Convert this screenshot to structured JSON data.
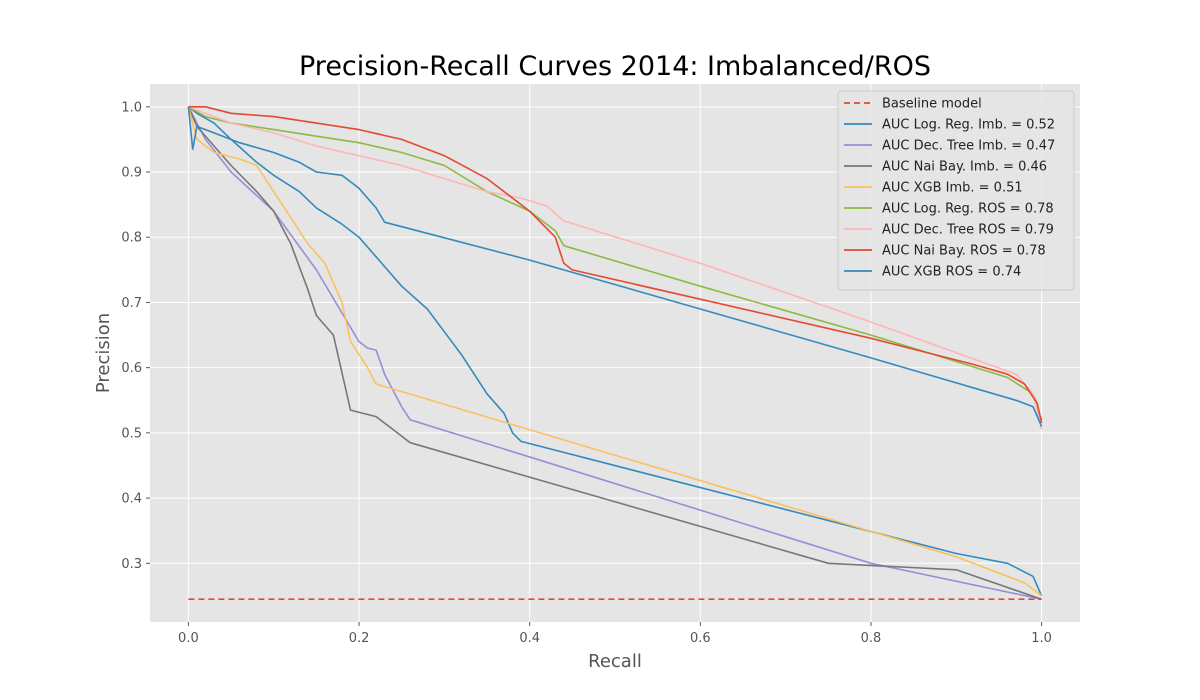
{
  "chart_data": {
    "type": "line",
    "title": "Precision-Recall Curves 2014: Imbalanced/ROS",
    "xlabel": "Recall",
    "ylabel": "Precision",
    "xlim": [
      -0.045,
      1.045
    ],
    "ylim": [
      0.21,
      1.035
    ],
    "xticks": [
      0.0,
      0.2,
      0.4,
      0.6,
      0.8,
      1.0
    ],
    "xtick_labels": [
      "0.0",
      "0.2",
      "0.4",
      "0.6",
      "0.8",
      "1.0"
    ],
    "yticks": [
      0.3,
      0.4,
      0.5,
      0.6,
      0.7,
      0.8,
      0.9,
      1.0
    ],
    "ytick_labels": [
      "0.3",
      "0.4",
      "0.5",
      "0.6",
      "0.7",
      "0.8",
      "0.9",
      "1.0"
    ],
    "grid": true,
    "legend_position": "top-right",
    "series": [
      {
        "name": "Baseline model",
        "color": "#E24A33",
        "dashed": true,
        "points": [
          [
            0.0,
            0.245
          ],
          [
            1.0,
            0.245
          ]
        ]
      },
      {
        "name": "AUC Log. Reg. Imb. = 0.52",
        "color": "#348ABD",
        "points": [
          [
            0.0,
            1.0
          ],
          [
            0.01,
            0.99
          ],
          [
            0.03,
            0.975
          ],
          [
            0.05,
            0.95
          ],
          [
            0.08,
            0.915
          ],
          [
            0.1,
            0.895
          ],
          [
            0.13,
            0.87
          ],
          [
            0.15,
            0.845
          ],
          [
            0.18,
            0.82
          ],
          [
            0.2,
            0.8
          ],
          [
            0.22,
            0.77
          ],
          [
            0.25,
            0.725
          ],
          [
            0.28,
            0.69
          ],
          [
            0.3,
            0.655
          ],
          [
            0.32,
            0.62
          ],
          [
            0.33,
            0.6
          ],
          [
            0.35,
            0.56
          ],
          [
            0.37,
            0.53
          ],
          [
            0.38,
            0.5
          ],
          [
            0.39,
            0.487
          ],
          [
            0.9,
            0.315
          ],
          [
            0.96,
            0.3
          ],
          [
            0.99,
            0.28
          ],
          [
            1.0,
            0.25
          ]
        ]
      },
      {
        "name": "AUC Dec. Tree Imb. = 0.47",
        "color": "#988ED5",
        "points": [
          [
            0.0,
            1.0
          ],
          [
            0.02,
            0.95
          ],
          [
            0.05,
            0.9
          ],
          [
            0.1,
            0.84
          ],
          [
            0.15,
            0.75
          ],
          [
            0.2,
            0.64
          ],
          [
            0.21,
            0.63
          ],
          [
            0.22,
            0.627
          ],
          [
            0.23,
            0.59
          ],
          [
            0.25,
            0.54
          ],
          [
            0.26,
            0.52
          ],
          [
            0.8,
            0.3
          ],
          [
            1.0,
            0.245
          ]
        ]
      },
      {
        "name": "AUC Nai Bay. Imb. = 0.46",
        "color": "#777777",
        "points": [
          [
            0.0,
            1.0
          ],
          [
            0.01,
            0.97
          ],
          [
            0.03,
            0.94
          ],
          [
            0.05,
            0.91
          ],
          [
            0.08,
            0.87
          ],
          [
            0.1,
            0.84
          ],
          [
            0.12,
            0.79
          ],
          [
            0.13,
            0.755
          ],
          [
            0.14,
            0.72
          ],
          [
            0.15,
            0.68
          ],
          [
            0.17,
            0.65
          ],
          [
            0.19,
            0.535
          ],
          [
            0.22,
            0.525
          ],
          [
            0.24,
            0.505
          ],
          [
            0.26,
            0.485
          ],
          [
            0.75,
            0.3
          ],
          [
            0.9,
            0.29
          ],
          [
            1.0,
            0.245
          ]
        ]
      },
      {
        "name": "AUC XGB Imb. = 0.51",
        "color": "#FBC15E",
        "points": [
          [
            0.0,
            1.0
          ],
          [
            0.01,
            0.95
          ],
          [
            0.03,
            0.93
          ],
          [
            0.06,
            0.92
          ],
          [
            0.08,
            0.91
          ],
          [
            0.1,
            0.87
          ],
          [
            0.12,
            0.83
          ],
          [
            0.14,
            0.79
          ],
          [
            0.16,
            0.76
          ],
          [
            0.18,
            0.7
          ],
          [
            0.19,
            0.64
          ],
          [
            0.21,
            0.6
          ],
          [
            0.22,
            0.575
          ],
          [
            0.9,
            0.31
          ],
          [
            0.98,
            0.27
          ],
          [
            1.0,
            0.25
          ]
        ]
      },
      {
        "name": "AUC Log. Reg. ROS = 0.78",
        "color": "#8EBA42",
        "points": [
          [
            0.0,
            1.0
          ],
          [
            0.02,
            0.985
          ],
          [
            0.05,
            0.975
          ],
          [
            0.1,
            0.965
          ],
          [
            0.15,
            0.955
          ],
          [
            0.2,
            0.945
          ],
          [
            0.25,
            0.93
          ],
          [
            0.3,
            0.91
          ],
          [
            0.35,
            0.87
          ],
          [
            0.4,
            0.84
          ],
          [
            0.43,
            0.81
          ],
          [
            0.44,
            0.787
          ],
          [
            0.6,
            0.725
          ],
          [
            0.8,
            0.65
          ],
          [
            0.96,
            0.585
          ],
          [
            0.99,
            0.56
          ],
          [
            1.0,
            0.52
          ]
        ]
      },
      {
        "name": "AUC Dec. Tree ROS = 0.79",
        "color": "#FFB5B8",
        "points": [
          [
            0.0,
            1.0
          ],
          [
            0.05,
            0.975
          ],
          [
            0.1,
            0.96
          ],
          [
            0.15,
            0.94
          ],
          [
            0.2,
            0.925
          ],
          [
            0.25,
            0.91
          ],
          [
            0.3,
            0.89
          ],
          [
            0.35,
            0.87
          ],
          [
            0.39,
            0.86
          ],
          [
            0.42,
            0.848
          ],
          [
            0.44,
            0.825
          ],
          [
            0.6,
            0.76
          ],
          [
            0.8,
            0.67
          ],
          [
            0.97,
            0.59
          ],
          [
            0.99,
            0.56
          ],
          [
            1.0,
            0.505
          ]
        ]
      },
      {
        "name": "AUC Nai Bay. ROS = 0.78",
        "color": "#E24A33",
        "points": [
          [
            0.0,
            1.0
          ],
          [
            0.02,
            1.0
          ],
          [
            0.05,
            0.99
          ],
          [
            0.1,
            0.985
          ],
          [
            0.15,
            0.975
          ],
          [
            0.2,
            0.965
          ],
          [
            0.25,
            0.95
          ],
          [
            0.3,
            0.925
          ],
          [
            0.35,
            0.89
          ],
          [
            0.4,
            0.84
          ],
          [
            0.43,
            0.8
          ],
          [
            0.44,
            0.76
          ],
          [
            0.45,
            0.75
          ],
          [
            0.6,
            0.705
          ],
          [
            0.8,
            0.645
          ],
          [
            0.92,
            0.605
          ],
          [
            0.96,
            0.59
          ],
          [
            0.98,
            0.575
          ],
          [
            0.995,
            0.545
          ],
          [
            1.0,
            0.515
          ]
        ]
      },
      {
        "name": "AUC XGB ROS = 0.74",
        "color": "#348ABD",
        "points": [
          [
            0.0,
            1.0
          ],
          [
            0.005,
            0.935
          ],
          [
            0.01,
            0.97
          ],
          [
            0.03,
            0.96
          ],
          [
            0.06,
            0.945
          ],
          [
            0.1,
            0.93
          ],
          [
            0.13,
            0.915
          ],
          [
            0.15,
            0.9
          ],
          [
            0.18,
            0.895
          ],
          [
            0.2,
            0.875
          ],
          [
            0.22,
            0.845
          ],
          [
            0.23,
            0.823
          ],
          [
            0.4,
            0.765
          ],
          [
            0.6,
            0.69
          ],
          [
            0.8,
            0.615
          ],
          [
            0.97,
            0.55
          ],
          [
            0.99,
            0.54
          ],
          [
            1.0,
            0.51
          ]
        ]
      }
    ]
  }
}
